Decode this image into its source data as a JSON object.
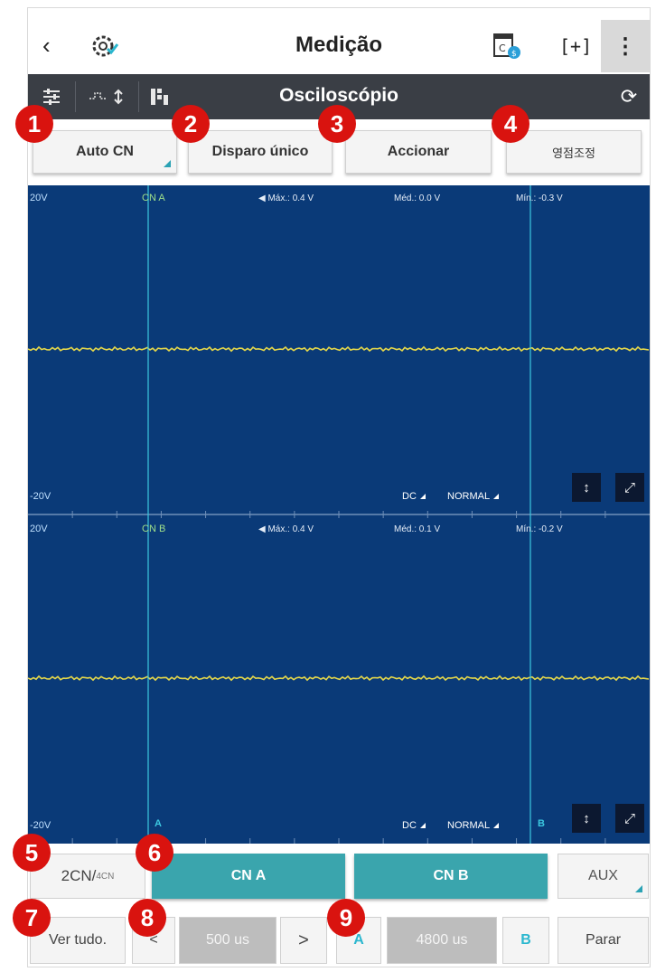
{
  "header": {
    "back_icon": "chevron-left-icon",
    "title": "Medição",
    "more_icon": "more-vertical-icon"
  },
  "toolbar": {
    "title": "Osciloscópio"
  },
  "top_buttons": [
    {
      "badge": "1",
      "label": "Auto CN"
    },
    {
      "badge": "2",
      "label": "Disparo único"
    },
    {
      "badge": "3",
      "label": "Accionar"
    },
    {
      "badge": "4",
      "label": "영점조정"
    }
  ],
  "scope": {
    "background_color": "#0a3a78",
    "trace_color": "#e6d84a",
    "cursor_color": "#3cc8e0",
    "channel_a": {
      "label": "CN A",
      "top_voltage": "20V",
      "bottom_voltage": "-20V",
      "max": "Máx.: 0.4 V",
      "avg": "Méd.: 0.0 V",
      "min": "Mín.: -0.3 V",
      "coupling": "DC",
      "mode": "NORMAL"
    },
    "channel_b": {
      "label": "CN B",
      "top_voltage": "20V",
      "bottom_voltage": "-20V",
      "max": "Máx.: 0.4 V",
      "avg": "Méd.: 0.1 V",
      "min": "Mín.: -0.2 V",
      "coupling": "DC",
      "mode": "NORMAL"
    },
    "cursor_a_label": "A",
    "cursor_b_label": "B"
  },
  "channel_row": {
    "badge5": "5",
    "badge6": "6",
    "mode_main": "2CN/",
    "mode_small": "4CN",
    "tab_a": "CN A",
    "tab_b": "CN B",
    "tab_aux": "AUX"
  },
  "control_row": {
    "badge7": "7",
    "badge8": "8",
    "badge9": "9",
    "view_all": "Ver tudo.",
    "time_prev": "<",
    "time_value": "500 us",
    "time_next": ">",
    "cursor_a": "A",
    "cursor_value": "4800 us",
    "cursor_b": "B",
    "stop": "Parar"
  }
}
